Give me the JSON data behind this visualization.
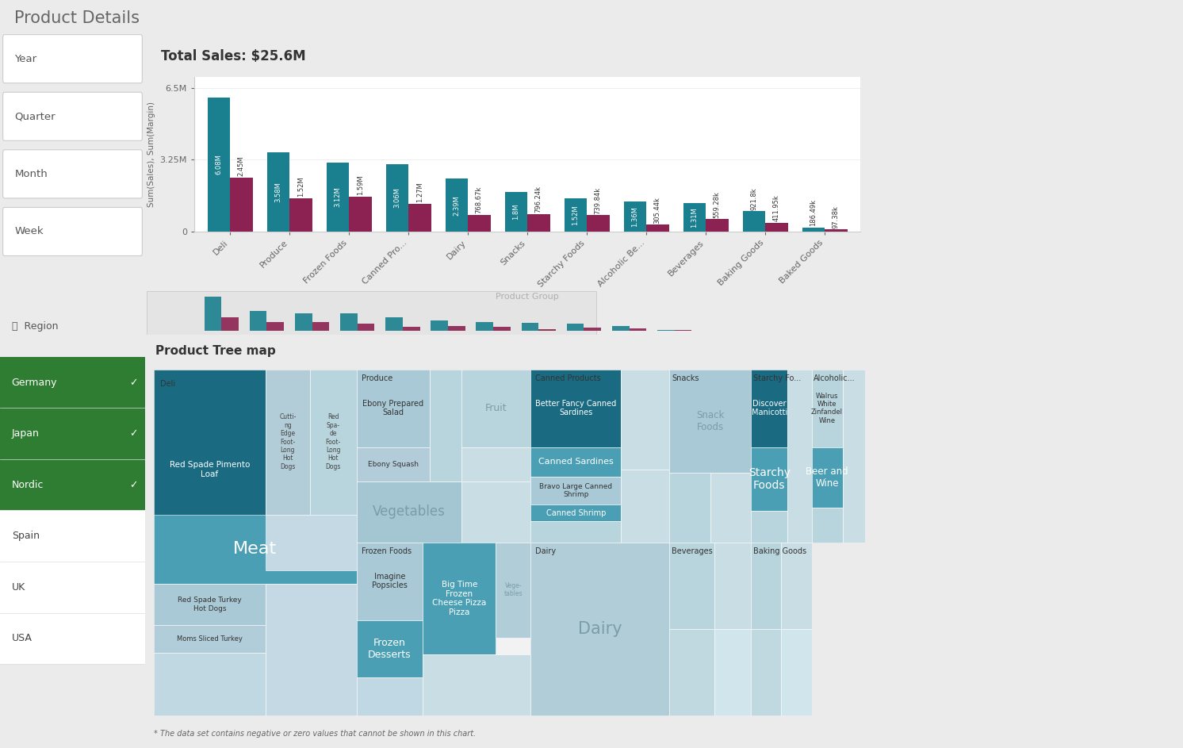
{
  "title": "Product Details",
  "bg_color": "#ebebeb",
  "panel_bg": "#ffffff",
  "bar_title": "Total Sales: $25.6M",
  "bar_categories": [
    "Deli",
    "Produce",
    "Frozen Foods",
    "Canned Pro...",
    "Dairy",
    "Snacks",
    "Starchy Foods",
    "Alcoholic Be...",
    "Beverages",
    "Baking Goods",
    "Baked Goods"
  ],
  "bar_sales": [
    6.08,
    3.58,
    3.12,
    3.06,
    2.39,
    1.8,
    1.52,
    1.36,
    1.31,
    0.9218,
    0.18649
  ],
  "bar_margin": [
    2.45,
    1.52,
    1.59,
    1.27,
    0.76867,
    0.79624,
    0.73984,
    0.30544,
    0.55928,
    0.41195,
    0.09738
  ],
  "bar_sales_labels": [
    "6.08M",
    "3.58M",
    "3.12M",
    "3.06M",
    "2.39M",
    "1.8M",
    "1.52M",
    "1.36M",
    "1.31M",
    "921.8k",
    "186.49k"
  ],
  "bar_margin_labels": [
    "2.45M",
    "1.52M",
    "1.59M",
    "1.27M",
    "768.67k",
    "796.24k",
    "739.84k",
    "305.44k",
    "559.28k",
    "411.95k",
    "97.38k"
  ],
  "sales_color": "#1a7f8e",
  "margin_color": "#8b2252",
  "ylabel": "Sum(Sales), Sum(Margin)",
  "xlabel": "Product Group",
  "ylim_max": 6.5,
  "yticks": [
    0,
    3.25,
    6.5
  ],
  "ytick_labels": [
    "0",
    "3.25M",
    "6.5M"
  ],
  "filter_labels": [
    "Year",
    "Quarter",
    "Month",
    "Week"
  ],
  "region_label": "Region",
  "regions": [
    "Germany",
    "Japan",
    "Nordic",
    "Spain",
    "UK",
    "USA"
  ],
  "selected_regions": [
    "Germany",
    "Japan",
    "Nordic"
  ],
  "selected_color": "#2e7d32",
  "treemap_title": "Product Tree map",
  "footnote": "* The data set contains negative or zero values that cannot be shown in this chart."
}
